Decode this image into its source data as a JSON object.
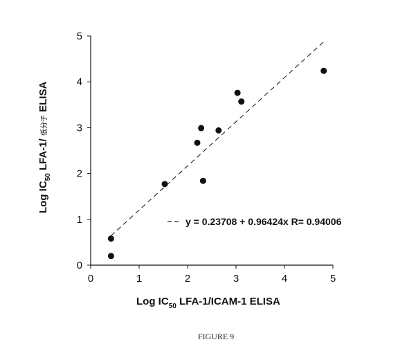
{
  "chart_data": {
    "type": "scatter",
    "xlabel": {
      "prefix": "Log IC",
      "sub": "50",
      "rest": " LFA-1/ICAM-1 ELISA"
    },
    "ylabel": {
      "prefix": "Log IC",
      "sub": "50",
      "mid": " LFA-1/ ",
      "cjk": "低分子",
      "rest": " ELISA"
    },
    "xlim": [
      0,
      5
    ],
    "ylim": [
      0,
      5
    ],
    "x_ticks": [
      0,
      1,
      2,
      3,
      4,
      5
    ],
    "y_ticks": [
      0,
      1,
      2,
      3,
      4,
      5
    ],
    "points": [
      {
        "x": 0.42,
        "y": 0.58
      },
      {
        "x": 0.42,
        "y": 0.2
      },
      {
        "x": 1.53,
        "y": 1.77
      },
      {
        "x": 2.2,
        "y": 2.67
      },
      {
        "x": 2.28,
        "y": 2.99
      },
      {
        "x": 2.32,
        "y": 1.84
      },
      {
        "x": 2.64,
        "y": 2.94
      },
      {
        "x": 3.03,
        "y": 3.76
      },
      {
        "x": 3.11,
        "y": 3.57
      },
      {
        "x": 4.81,
        "y": 4.24
      }
    ],
    "fit": {
      "intercept": 0.23708,
      "slope": 0.96424,
      "x_range": [
        0.42,
        4.81
      ],
      "style": "dashed"
    },
    "legend": {
      "label": "y = 0.23708 + 0.96424x R= 0.94006",
      "placement": "bottom-right"
    }
  },
  "caption": "FIGURE 9"
}
